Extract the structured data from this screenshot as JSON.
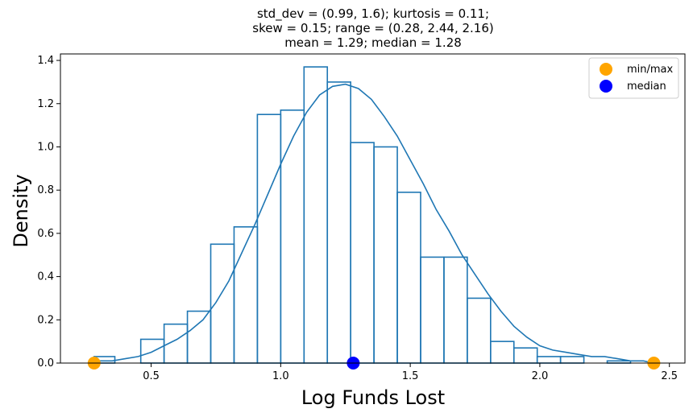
{
  "chart_data": {
    "type": "histogram",
    "title_lines": [
      "std_dev = (0.99, 1.6); kurtosis = 0.11;",
      "skew = 0.15; range = (0.28, 2.44, 2.16)",
      "mean = 1.29; median = 1.28"
    ],
    "xlabel": "Log Funds Lost",
    "ylabel": "Density",
    "xlim": [
      0.15,
      2.56
    ],
    "ylim": [
      0,
      1.43
    ],
    "xticks": [
      0.5,
      1.0,
      1.5,
      2.0,
      2.5
    ],
    "xtick_labels": [
      "0.5",
      "1.0",
      "1.5",
      "2.0",
      "2.5"
    ],
    "yticks": [
      0.0,
      0.2,
      0.4,
      0.6,
      0.8,
      1.0,
      1.2,
      1.4
    ],
    "ytick_labels": [
      "0.0",
      "0.2",
      "0.4",
      "0.6",
      "0.8",
      "1.0",
      "1.2",
      "1.4"
    ],
    "grid": false,
    "series_color": "#1f77b4",
    "bins": {
      "edges": [
        0.28,
        0.36,
        0.46,
        0.55,
        0.64,
        0.73,
        0.82,
        0.91,
        1.0,
        1.09,
        1.18,
        1.27,
        1.36,
        1.45,
        1.54,
        1.63,
        1.72,
        1.81,
        1.9,
        1.99,
        2.08,
        2.17,
        2.26,
        2.35,
        2.44
      ],
      "values": [
        0.03,
        0.0,
        0.11,
        0.18,
        0.24,
        0.55,
        0.63,
        1.15,
        1.17,
        1.37,
        1.3,
        1.02,
        1.0,
        0.79,
        0.49,
        0.49,
        0.3,
        0.1,
        0.07,
        0.03,
        0.03,
        0.0,
        0.01,
        0.0
      ]
    },
    "kde": {
      "x": [
        0.28,
        0.35,
        0.4,
        0.45,
        0.5,
        0.55,
        0.6,
        0.65,
        0.7,
        0.75,
        0.8,
        0.85,
        0.9,
        0.95,
        1.0,
        1.05,
        1.1,
        1.15,
        1.2,
        1.25,
        1.3,
        1.35,
        1.4,
        1.45,
        1.5,
        1.55,
        1.6,
        1.65,
        1.7,
        1.75,
        1.8,
        1.85,
        1.9,
        1.95,
        2.0,
        2.05,
        2.1,
        2.15,
        2.2,
        2.25,
        2.3,
        2.35,
        2.4,
        2.44
      ],
      "y": [
        0.01,
        0.01,
        0.02,
        0.03,
        0.05,
        0.08,
        0.11,
        0.15,
        0.2,
        0.28,
        0.38,
        0.51,
        0.64,
        0.78,
        0.92,
        1.05,
        1.16,
        1.24,
        1.28,
        1.29,
        1.27,
        1.22,
        1.14,
        1.05,
        0.94,
        0.83,
        0.71,
        0.61,
        0.5,
        0.41,
        0.32,
        0.24,
        0.17,
        0.12,
        0.08,
        0.06,
        0.05,
        0.04,
        0.03,
        0.03,
        0.02,
        0.01,
        0.01,
        0.0
      ]
    },
    "markers": [
      {
        "label": "min",
        "x": 0.28,
        "y": 0.0,
        "color": "#ffa500"
      },
      {
        "label": "max",
        "x": 2.44,
        "y": 0.0,
        "color": "#ffa500"
      },
      {
        "label": "median",
        "x": 1.28,
        "y": 0.0,
        "color": "#0000ff"
      }
    ],
    "legend": {
      "position": "top-right",
      "entries": [
        {
          "label": "min/max",
          "color": "#ffa500"
        },
        {
          "label": "median",
          "color": "#0000ff"
        }
      ]
    }
  }
}
